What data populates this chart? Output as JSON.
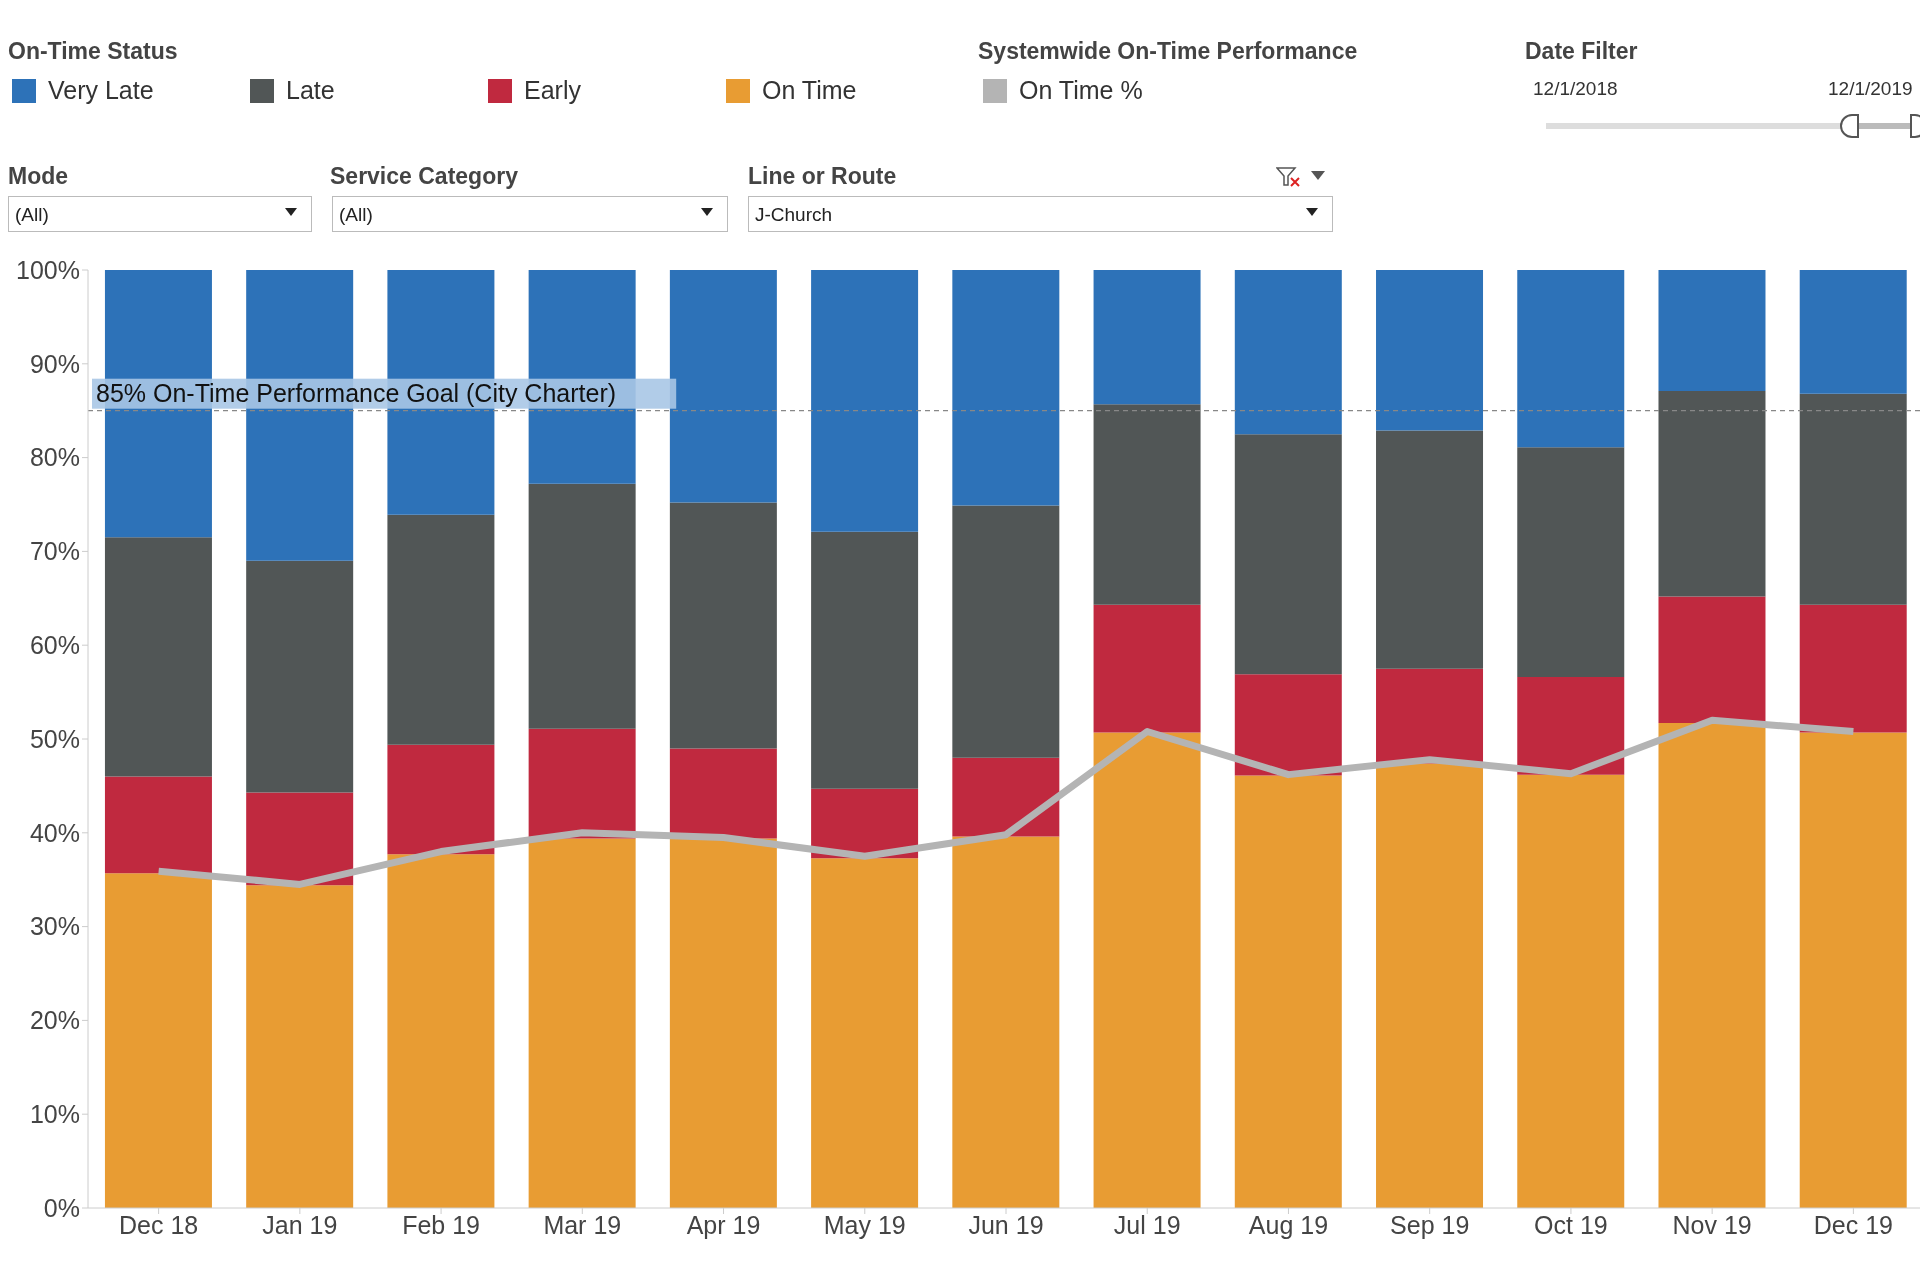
{
  "chart_data": {
    "type": "bar",
    "stacked": true,
    "categories": [
      "Dec 18",
      "Jan 19",
      "Feb 19",
      "Mar 19",
      "Apr 19",
      "May 19",
      "Jun 19",
      "Jul 19",
      "Aug 19",
      "Sep 19",
      "Oct 19",
      "Nov 19",
      "Dec 19"
    ],
    "series": [
      {
        "name": "On Time",
        "color": "#e89c33",
        "values": [
          35.7,
          34.4,
          37.7,
          39.4,
          39.4,
          37.3,
          39.6,
          50.7,
          46.1,
          47.4,
          46.2,
          51.7,
          50.7
        ]
      },
      {
        "name": "Early",
        "color": "#c0293f",
        "values": [
          10.3,
          9.9,
          11.7,
          11.7,
          9.6,
          7.4,
          8.4,
          13.6,
          10.8,
          10.1,
          10.4,
          13.5,
          13.6
        ]
      },
      {
        "name": "Late",
        "color": "#515656",
        "values": [
          25.5,
          24.7,
          24.5,
          26.1,
          26.2,
          27.4,
          26.9,
          21.4,
          25.6,
          25.4,
          24.5,
          21.9,
          22.5
        ]
      },
      {
        "name": "Very Late",
        "color": "#2d72b8",
        "values": [
          28.5,
          31.0,
          26.1,
          22.8,
          24.8,
          27.9,
          25.1,
          14.3,
          17.5,
          17.1,
          18.9,
          12.9,
          13.2
        ]
      },
      {
        "name": "On Time %",
        "type": "line",
        "color": "#b4b4b4",
        "values": [
          35.9,
          34.5,
          38.0,
          40.0,
          39.5,
          37.5,
          39.8,
          50.8,
          46.2,
          47.8,
          46.3,
          52.0,
          50.8
        ]
      }
    ],
    "ylim": [
      0,
      100
    ],
    "yticks": [
      {
        "value": 0,
        "label": "0%"
      },
      {
        "value": 10,
        "label": "10%"
      },
      {
        "value": 20,
        "label": "20%"
      },
      {
        "value": 30,
        "label": "30%"
      },
      {
        "value": 40,
        "label": "40%"
      },
      {
        "value": 50,
        "label": "50%"
      },
      {
        "value": 60,
        "label": "60%"
      },
      {
        "value": 70,
        "label": "70%"
      },
      {
        "value": 80,
        "label": "80%"
      },
      {
        "value": 90,
        "label": "90%"
      },
      {
        "value": 100,
        "label": "100%"
      }
    ],
    "ref_lines": [
      {
        "axis": "y",
        "value": 85,
        "label": "85% On-Time Performance Goal (City Charter)",
        "color": "#888888",
        "line_style": "dashed"
      }
    ],
    "legend": "top",
    "legend_title": "On-Time Status",
    "annotations": [
      "Systemwide On-Time Performance",
      "Date Filter",
      "12/1/2018",
      "12/1/2019",
      "Mode",
      "(All)",
      "Service Category",
      "(All)",
      "Line or Route",
      "J-Church"
    ]
  }
}
